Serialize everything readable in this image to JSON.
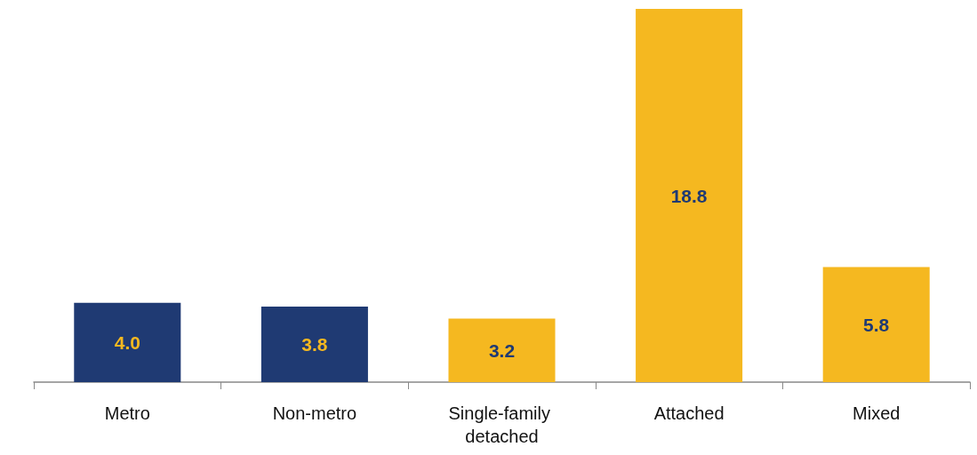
{
  "chart_data": {
    "type": "bar",
    "categories": [
      "Metro",
      "Non-metro",
      "Single-family detached",
      "Attached",
      "Mixed"
    ],
    "values": [
      4.0,
      3.8,
      3.2,
      18.8,
      5.8
    ],
    "value_labels": [
      "4.0",
      "3.8",
      "3.2",
      "18.8",
      "5.8"
    ],
    "colors": [
      "#1f3a73",
      "#1f3a73",
      "#f5b820",
      "#f5b820",
      "#f5b820"
    ]
  }
}
